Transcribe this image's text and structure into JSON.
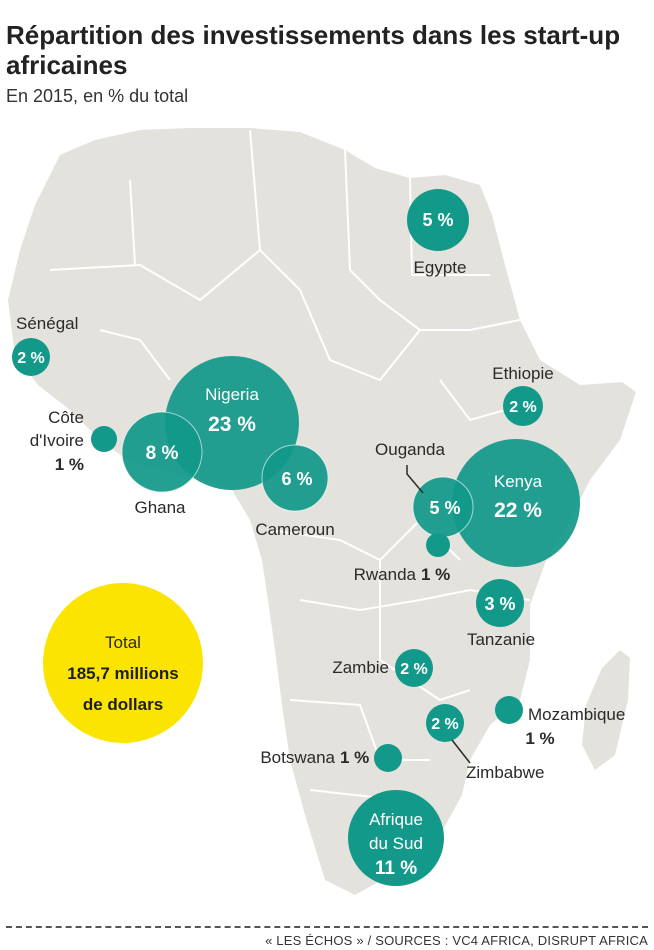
{
  "title": "Répartition des investissements dans les start-up africaines",
  "subtitle": "En 2015, en % du total",
  "total": {
    "label": "Total",
    "value_line1": "185,7 millions",
    "value_line2": "de dollars"
  },
  "countries": [
    {
      "name": "Egypte",
      "value": "5 %"
    },
    {
      "name": "Sénégal",
      "value": "2 %"
    },
    {
      "name": "Nigeria",
      "value": "23 %"
    },
    {
      "name_line1": "Côte",
      "name_line2": "d'Ivoire",
      "value": "1 %"
    },
    {
      "name": "Ghana",
      "value": "8 %"
    },
    {
      "name": "Cameroun",
      "value": "6 %"
    },
    {
      "name": "Ethiopie",
      "value": "2 %"
    },
    {
      "name": "Ouganda",
      "value": "5 %"
    },
    {
      "name": "Kenya",
      "value": "22 %"
    },
    {
      "name": "Rwanda",
      "value": "1 %"
    },
    {
      "name": "Tanzanie",
      "value": "3 %"
    },
    {
      "name": "Zambie",
      "value": "2 %"
    },
    {
      "name": "Mozambique",
      "value": "1 %"
    },
    {
      "name": "Zimbabwe",
      "value": "2 %"
    },
    {
      "name": "Botswana",
      "value": "1 %"
    },
    {
      "name_line1": "Afrique",
      "name_line2": "du Sud",
      "value": "11 %"
    }
  ],
  "footer": "« LES ÉCHOS » / SOURCES : VC4 AFRICA, DISRUPT AFRICA",
  "colors": {
    "land": "#e4e2dc",
    "border": "#ffffff",
    "bubble": "#12998a",
    "total_circle": "#fbe400"
  }
}
